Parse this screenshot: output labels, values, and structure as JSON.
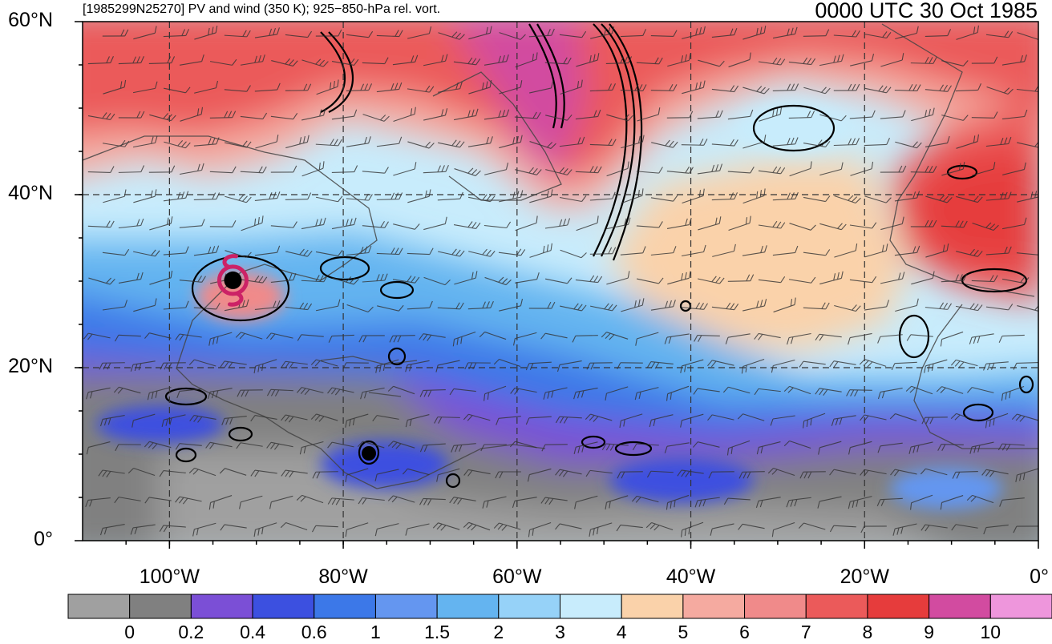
{
  "title": {
    "left": "[1985299N25270] PV and wind (350 K); 925−850-hPa rel. vort.",
    "right": "0000 UTC 30 Oct 1985"
  },
  "map": {
    "lon_range": [
      -110,
      0
    ],
    "lat_range": [
      0,
      60
    ],
    "lat_ticks": [
      {
        "value": 60,
        "label": "60°N"
      },
      {
        "value": 40,
        "label": "40°N"
      },
      {
        "value": 20,
        "label": "20°N"
      },
      {
        "value": 0,
        "label": "0°"
      }
    ],
    "lon_ticks": [
      {
        "value": -100,
        "label": "100°W"
      },
      {
        "value": -80,
        "label": "80°W"
      },
      {
        "value": -60,
        "label": "60°W"
      },
      {
        "value": -40,
        "label": "40°W"
      },
      {
        "value": -20,
        "label": "20°W"
      },
      {
        "value": 0,
        "label": "0°"
      }
    ],
    "storm_symbol": {
      "name": "tropical-cyclone-icon",
      "lon": -92.7,
      "lat": 30.1,
      "color": "#cc2266"
    }
  },
  "colorbar": {
    "colors": [
      "#a0a0a0",
      "#808080",
      "#7b4fd6",
      "#3c50e0",
      "#3c78e8",
      "#6496f0",
      "#64b4f0",
      "#96d2f8",
      "#c8ecfc",
      "#fad2aa",
      "#f5aaa0",
      "#f08a8a",
      "#eb5a5a",
      "#e63c3c",
      "#d24ba0",
      "#ee96dc"
    ],
    "labels": [
      "0",
      "0.2",
      "0.4",
      "0.6",
      "1",
      "1.5",
      "2",
      "3",
      "4",
      "5",
      "6",
      "7",
      "8",
      "9",
      "10"
    ]
  }
}
